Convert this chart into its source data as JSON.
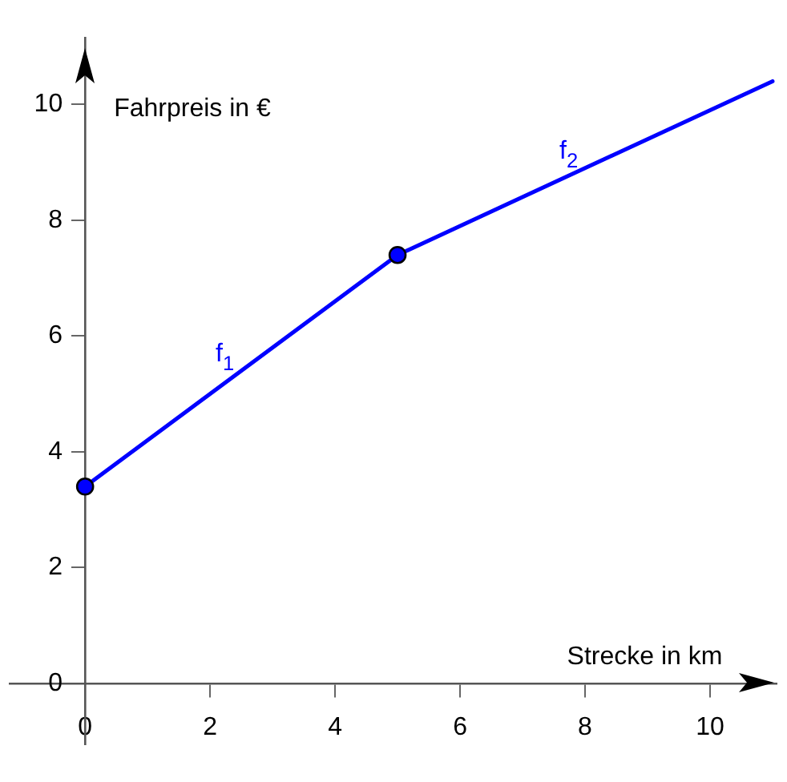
{
  "chart_data": {
    "type": "line",
    "xlabel": "Strecke in km",
    "ylabel": "Fahrpreis in €",
    "xlim": [
      -1.2,
      11.07
    ],
    "ylim": [
      -1.05,
      11.15
    ],
    "xticks": [
      0,
      2,
      4,
      6,
      8,
      10
    ],
    "yticks": [
      0,
      2,
      4,
      6,
      8,
      10
    ],
    "series": [
      {
        "name": "f$_{1}$",
        "color": "#0000ff",
        "x": [
          0,
          5
        ],
        "values": [
          3.4,
          7.4
        ],
        "marker": "circle"
      },
      {
        "name": "f$_{2}$",
        "color": "#0000ff",
        "x": [
          5,
          11
        ],
        "values": [
          7.4,
          10.4
        ],
        "marker": "none"
      }
    ],
    "grid": false,
    "legend": false,
    "line_style": "solid"
  }
}
